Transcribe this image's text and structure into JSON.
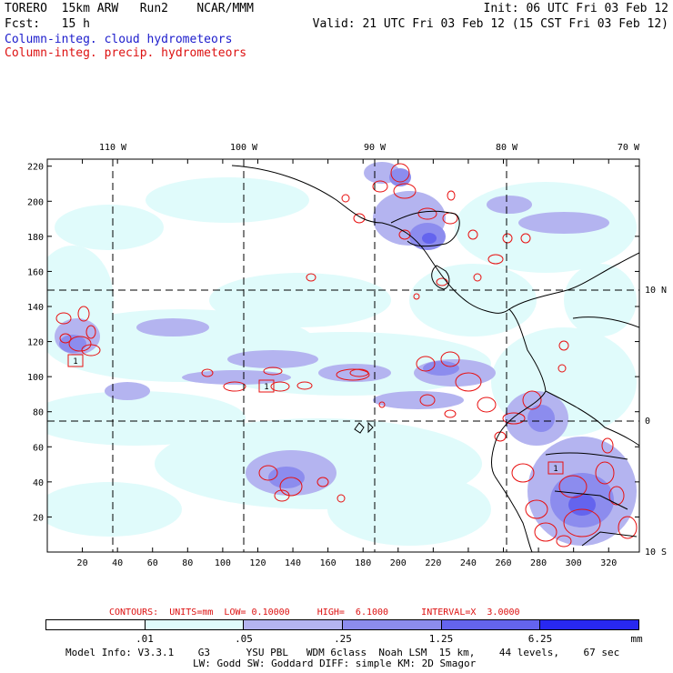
{
  "header": {
    "line1_left": "TORERO  15km ARW   Run2    NCAR/MMM",
    "line1_right": "Init: 06 UTC Fri 03 Feb 12",
    "line2_left": "Fcst:   15 h",
    "line2_right": "Valid: 21 UTC Fri 03 Feb 12 (15 CST Fri 03 Feb 12)",
    "field1": "Column-integ. cloud hydrometeors",
    "field2": "Column-integ. precip. hydrometeors"
  },
  "map": {
    "top_lon_labels": [
      "110 W",
      "100 W",
      "90 W",
      "80 W",
      "70 W"
    ],
    "right_lat_labels": [
      "10 N",
      "0",
      "10 S"
    ],
    "left_y_ticks": [
      "220",
      "200",
      "180",
      "160",
      "140",
      "120",
      "100",
      "80",
      "60",
      "40",
      "20"
    ],
    "bottom_x_ticks": [
      "20",
      "40",
      "60",
      "80",
      "100",
      "120",
      "140",
      "160",
      "180",
      "200",
      "220",
      "240",
      "260",
      "280",
      "300",
      "320"
    ],
    "max_markers": [
      "1",
      "1",
      "1"
    ],
    "colors": {
      "cloud_shades": [
        "#e0fbfb",
        "#b4b4f0",
        "#8c8cee",
        "#6464ee",
        "#2828f0"
      ],
      "precip_contour": "#e81010",
      "coast": "#000000"
    }
  },
  "contour_info": {
    "contours": "CONTOURS:  UNITS=mm  LOW= 0.10000     HIGH=  6.1000      INTERVAL=X  3.0000"
  },
  "colorbar": {
    "labels": [
      ".01",
      ".05",
      ".25",
      "1.25",
      "6.25"
    ],
    "units": "mm",
    "colors": [
      "#ffffff",
      "#e0fbfb",
      "#b4b4f0",
      "#8c8cee",
      "#6464ee",
      "#2828f0"
    ]
  },
  "footer": {
    "line1": "Model Info: V3.3.1    G3      YSU PBL   WDM 6class  Noah LSM  15 km,    44 levels,    67 sec",
    "line2": "LW: Godd SW: Goddard DIFF: simple KM: 2D Smagor"
  }
}
